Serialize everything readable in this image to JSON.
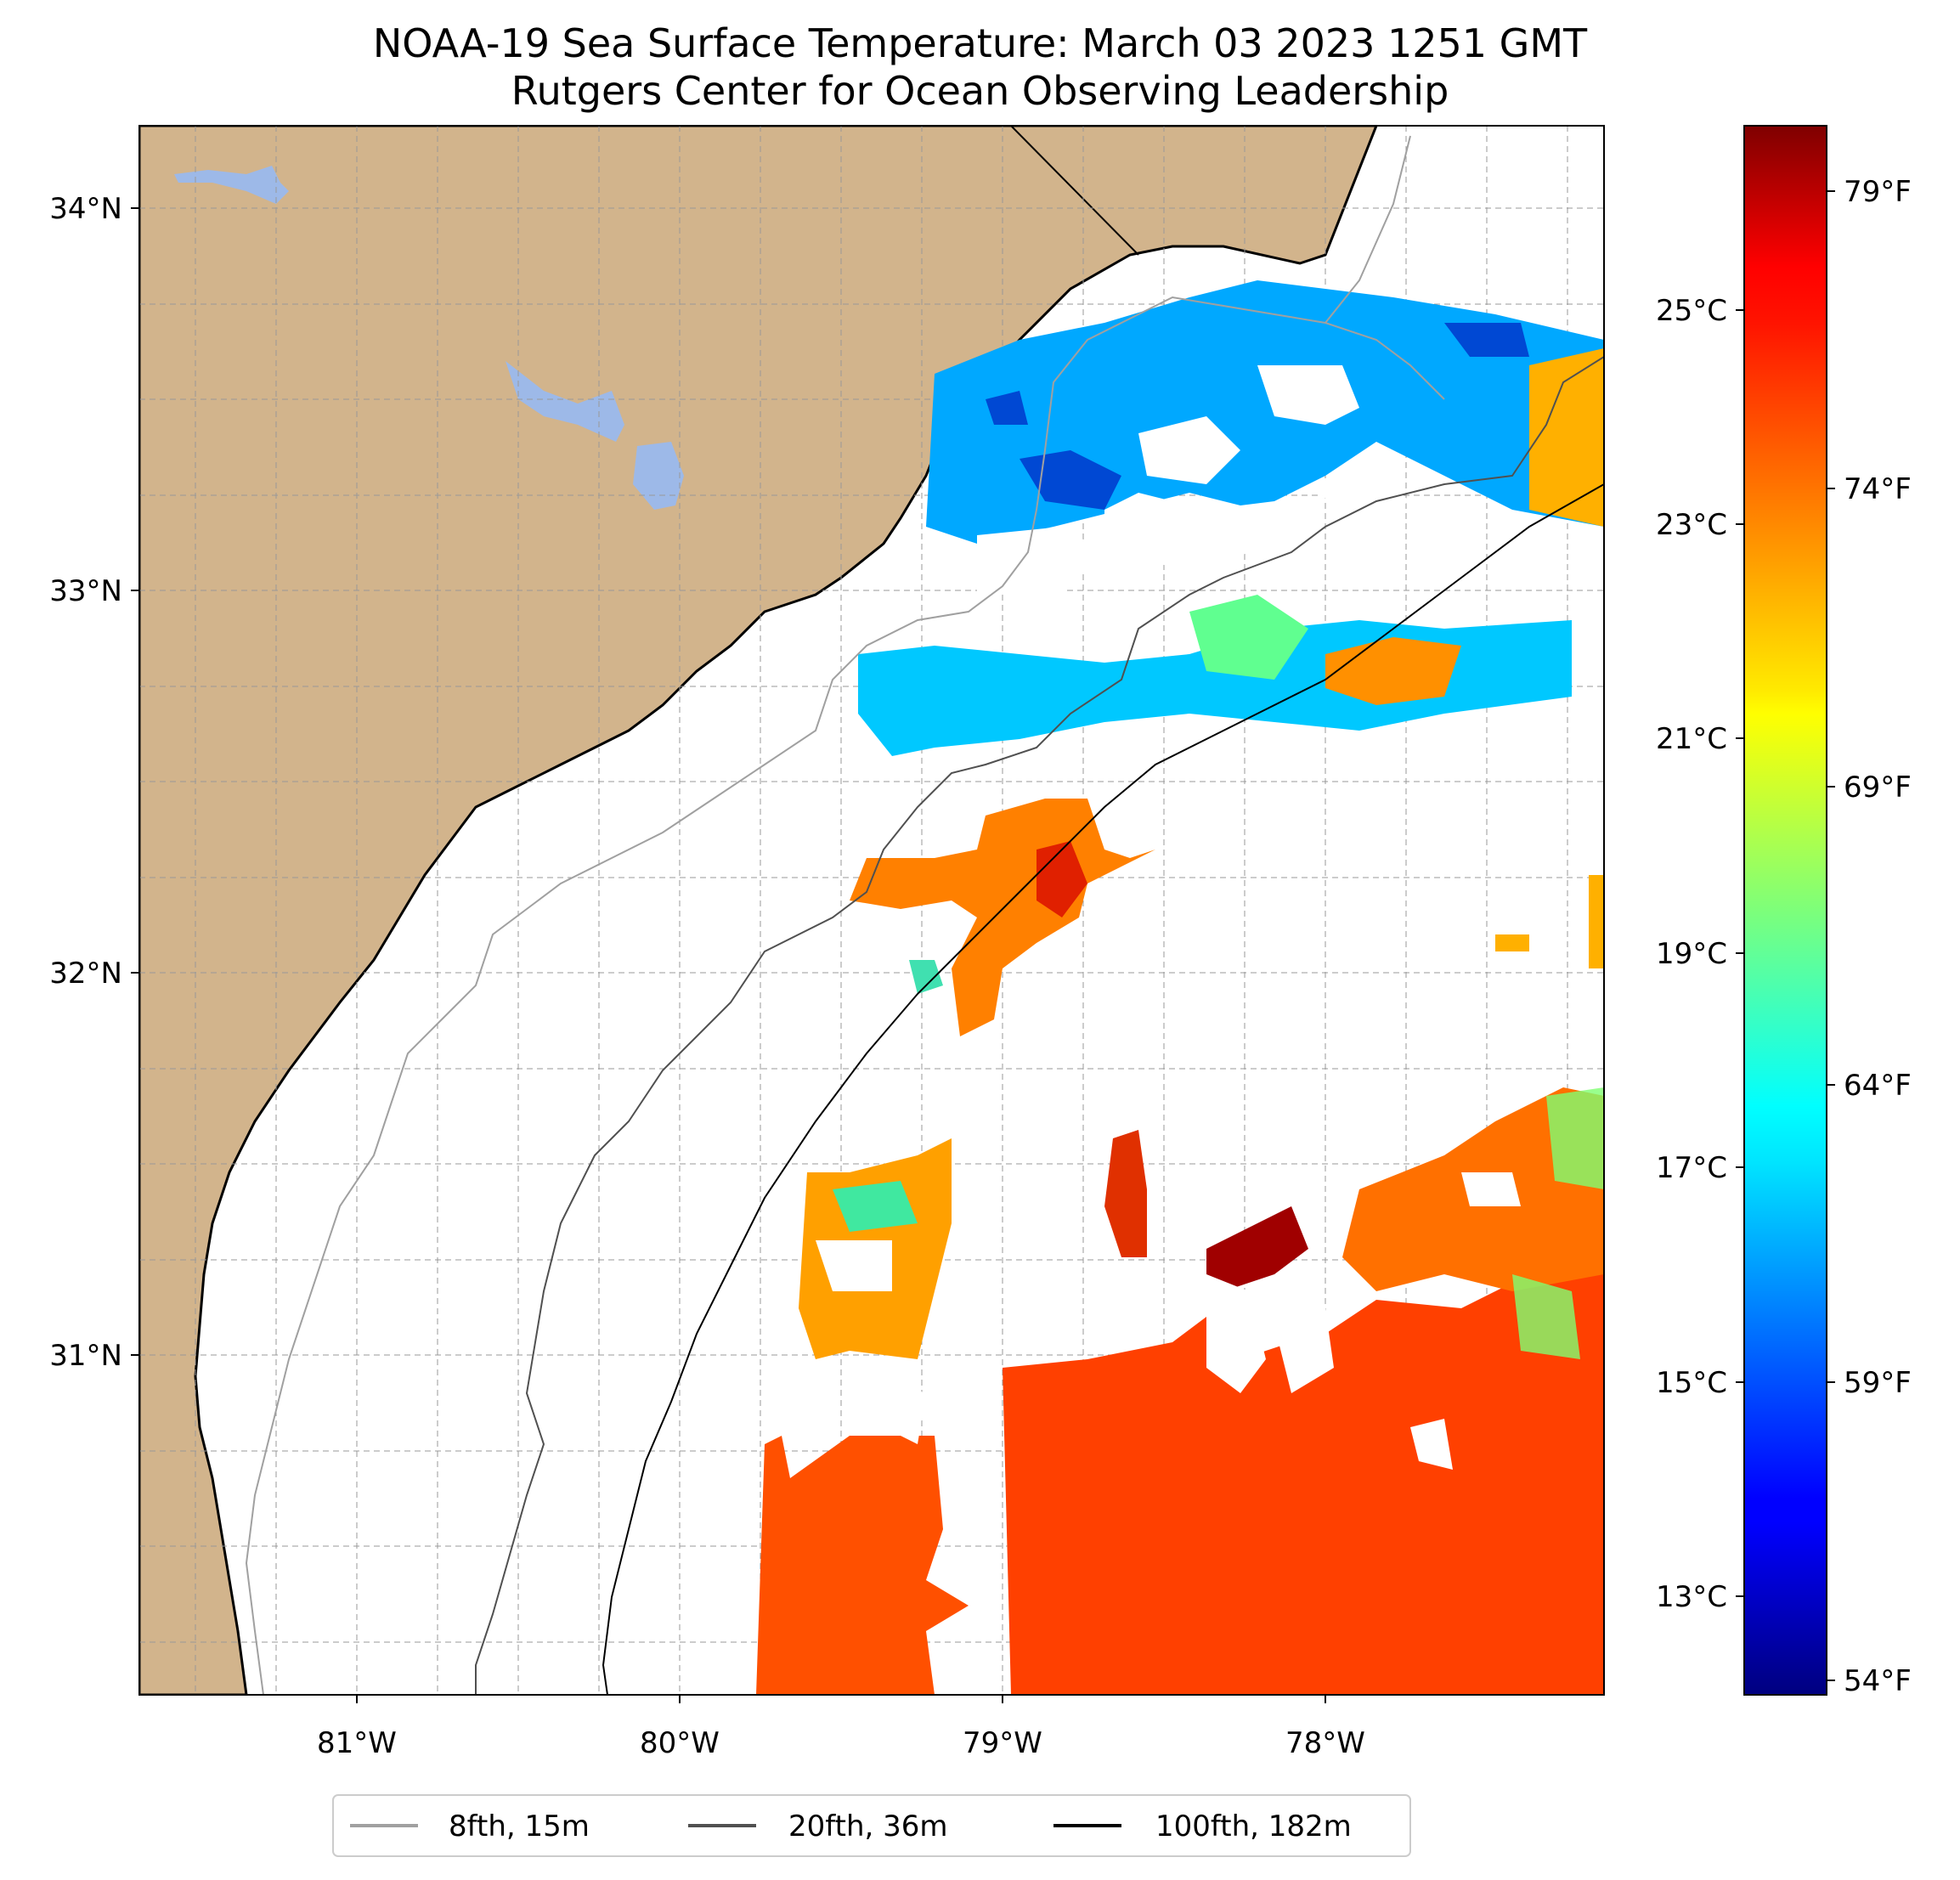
{
  "title": {
    "line1": "NOAA-19 Sea Surface Temperature: March 03 2023 1251 GMT",
    "line2": "Rutgers Center for Ocean Observing Leadership"
  },
  "map": {
    "lon_labels": [
      "81°W",
      "80°W",
      "79°W",
      "78°W"
    ],
    "lat_labels": [
      "34°N",
      "33°N",
      "32°N",
      "31°N"
    ],
    "land_color": "#d2b48c",
    "water_body_color": "#9db9e8",
    "gridlines": true
  },
  "colorbar": {
    "celsius_labels": [
      "25°C",
      "23°C",
      "21°C",
      "19°C",
      "17°C",
      "15°C",
      "13°C"
    ],
    "fahrenheit_labels": [
      "79°F",
      "74°F",
      "69°F",
      "64°F",
      "59°F",
      "54°F"
    ],
    "colormap": "jet",
    "range_celsius": [
      12.0,
      27.0
    ]
  },
  "legend": {
    "placement": "bottom-center",
    "items": [
      {
        "label": "8fth, 15m",
        "color": "#a0a0a0"
      },
      {
        "label": "20fth, 36m",
        "color": "#505050"
      },
      {
        "label": "100fth, 182m",
        "color": "#000000"
      }
    ]
  }
}
